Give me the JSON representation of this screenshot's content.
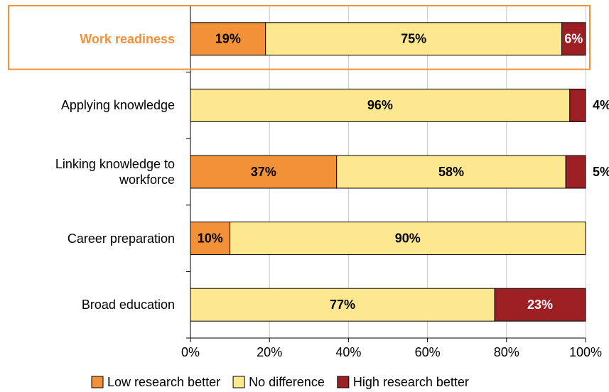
{
  "chart_data": {
    "type": "stacked-bar-horizontal",
    "categories": [
      "Work readiness",
      "Applying knowledge",
      "Linking knowledge to workforce",
      "Career preparation",
      "Broad education"
    ],
    "series": [
      {
        "name": "Low research better",
        "color": "#f39138",
        "values": [
          19,
          null,
          37,
          10,
          null
        ],
        "value_labels": [
          "19%",
          null,
          "37%",
          "10%",
          null
        ]
      },
      {
        "name": "No difference",
        "color": "#fee88f",
        "values": [
          75,
          96,
          58,
          90,
          77
        ],
        "value_labels": [
          "75%",
          "96%",
          "58%",
          "90%",
          "77%"
        ]
      },
      {
        "name": "High research better",
        "color": "#9c1f24",
        "values": [
          6,
          4,
          5,
          null,
          23
        ],
        "value_labels": [
          "6%",
          "4%",
          "5%",
          null,
          "23%"
        ]
      }
    ],
    "xlim": [
      0,
      100
    ],
    "xticks": [
      {
        "value": 0,
        "label": "0%"
      },
      {
        "value": 20,
        "label": "20%"
      },
      {
        "value": 40,
        "label": "40%"
      },
      {
        "value": 60,
        "label": "60%"
      },
      {
        "value": 80,
        "label": "80%"
      },
      {
        "value": 100,
        "label": "100%"
      }
    ],
    "grid": true,
    "highlight": 0,
    "highlight_color": "#f39138",
    "legend": "bottom"
  }
}
